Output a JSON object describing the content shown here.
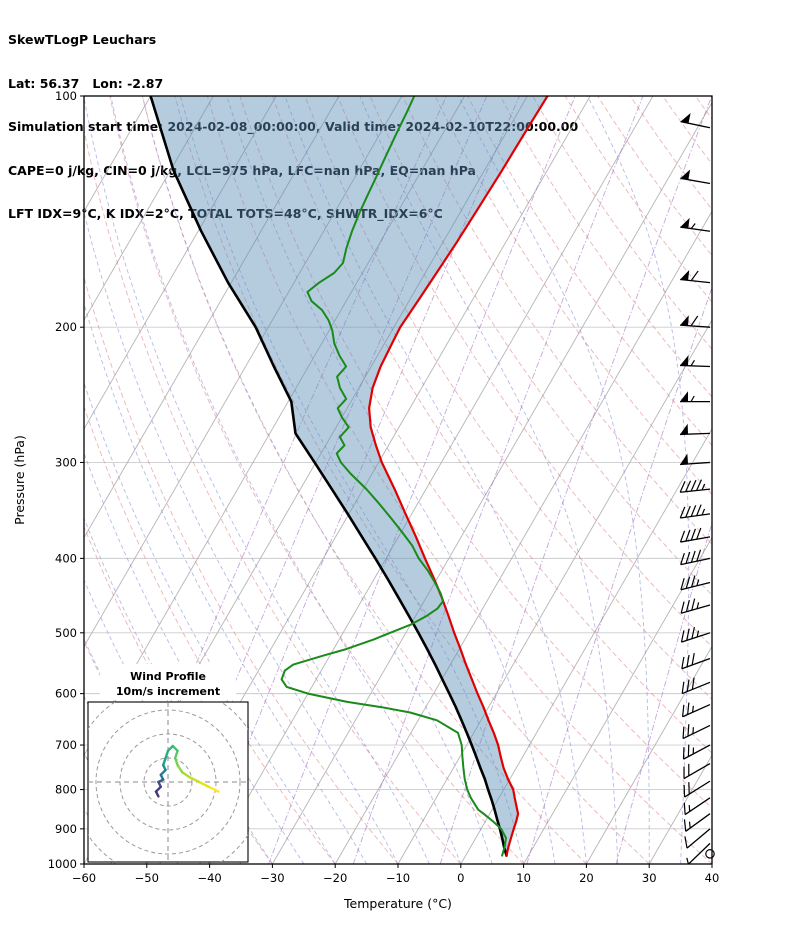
{
  "header": {
    "line1": "SkewTLogP Leuchars",
    "line2": "Lat: 56.37   Lon: -2.87",
    "line3": "Simulation start time: 2024-02-08_00:00:00, Valid time: 2024-02-10T22:00:00.00",
    "line4": "CAPE=0 j/kg, CIN=0 j/kg, LCL=975 hPa, LFC=nan hPa, EQ=nan hPa",
    "line5": "LFT IDX=9°C, K IDX=2°C, TOTAL TOTS=48°C, SHWTR_IDX=6°C"
  },
  "chart_data": {
    "type": "line",
    "title": "SkewTLogP Leuchars",
    "xlabel": "Temperature (°C)",
    "ylabel": "Pressure (hPa)",
    "x_ticks": [
      -60,
      -50,
      -40,
      -30,
      -20,
      -10,
      0,
      10,
      20,
      30,
      40
    ],
    "p_ticks": [
      100,
      200,
      300,
      400,
      500,
      600,
      700,
      800,
      900,
      1000
    ],
    "xlim": [
      -60,
      40
    ],
    "plim": [
      1000,
      100
    ],
    "skew_shift_per_decade_degC": 70.6,
    "shade_between": [
      "parcel",
      "temperature"
    ],
    "shade_color": "#5b8db8",
    "shade_opacity": 0.45,
    "series": [
      {
        "name": "parcel",
        "label": "Parcel trace",
        "color": "#000000",
        "width": 2.6,
        "points": [
          [
            975,
            6.5
          ],
          [
            950,
            5.3
          ],
          [
            925,
            4.2
          ],
          [
            900,
            3.0
          ],
          [
            875,
            1.7
          ],
          [
            850,
            0.4
          ],
          [
            825,
            -1.0
          ],
          [
            800,
            -2.5
          ],
          [
            775,
            -4.0
          ],
          [
            750,
            -5.7
          ],
          [
            725,
            -7.4
          ],
          [
            700,
            -9.2
          ],
          [
            675,
            -11.1
          ],
          [
            650,
            -13.1
          ],
          [
            625,
            -15.2
          ],
          [
            600,
            -17.5
          ],
          [
            575,
            -19.9
          ],
          [
            550,
            -22.4
          ],
          [
            525,
            -25.1
          ],
          [
            500,
            -28.0
          ],
          [
            475,
            -31.1
          ],
          [
            450,
            -34.4
          ],
          [
            425,
            -37.9
          ],
          [
            400,
            -41.7
          ],
          [
            375,
            -45.8
          ],
          [
            350,
            -50.2
          ],
          [
            325,
            -55.0
          ],
          [
            300,
            -60.2
          ],
          [
            275,
            -65.9
          ],
          [
            250,
            -69.5
          ],
          [
            225,
            -75.5
          ],
          [
            200,
            -82.0
          ],
          [
            175,
            -90.5
          ],
          [
            150,
            -99.5
          ],
          [
            125,
            -109.5
          ],
          [
            100,
            -120.0
          ]
        ]
      },
      {
        "name": "temperature",
        "label": "Temperature",
        "color": "#e00000",
        "width": 2.2,
        "points": [
          [
            975,
            6.5
          ],
          [
            950,
            6.0
          ],
          [
            925,
            5.6
          ],
          [
            900,
            5.2
          ],
          [
            880,
            4.9
          ],
          [
            860,
            4.5
          ],
          [
            850,
            4.0
          ],
          [
            820,
            2.5
          ],
          [
            800,
            1.5
          ],
          [
            775,
            -0.3
          ],
          [
            750,
            -2.0
          ],
          [
            725,
            -3.5
          ],
          [
            700,
            -5.0
          ],
          [
            675,
            -6.8
          ],
          [
            650,
            -8.8
          ],
          [
            625,
            -10.8
          ],
          [
            600,
            -13.0
          ],
          [
            575,
            -15.2
          ],
          [
            550,
            -17.5
          ],
          [
            525,
            -19.8
          ],
          [
            500,
            -22.3
          ],
          [
            475,
            -24.8
          ],
          [
            450,
            -27.5
          ],
          [
            425,
            -30.5
          ],
          [
            400,
            -33.8
          ],
          [
            375,
            -37.2
          ],
          [
            350,
            -41.0
          ],
          [
            325,
            -45.0
          ],
          [
            300,
            -49.5
          ],
          [
            285,
            -52.0
          ],
          [
            270,
            -54.5
          ],
          [
            255,
            -56.5
          ],
          [
            240,
            -57.8
          ],
          [
            225,
            -58.5
          ],
          [
            210,
            -58.8
          ],
          [
            200,
            -59.0
          ],
          [
            185,
            -58.6
          ],
          [
            170,
            -58.2
          ],
          [
            155,
            -57.8
          ],
          [
            140,
            -57.5
          ],
          [
            125,
            -57.2
          ],
          [
            110,
            -57.0
          ],
          [
            100,
            -56.8
          ]
        ]
      },
      {
        "name": "dewpoint",
        "label": "Dew point",
        "color": "#1a8a1a",
        "width": 2.0,
        "points": [
          [
            975,
            5.8
          ],
          [
            950,
            5.4
          ],
          [
            925,
            4.8
          ],
          [
            900,
            3.2
          ],
          [
            880,
            1.2
          ],
          [
            860,
            -1.0
          ],
          [
            850,
            -2.2
          ],
          [
            820,
            -4.5
          ],
          [
            800,
            -5.8
          ],
          [
            775,
            -7.2
          ],
          [
            750,
            -8.4
          ],
          [
            725,
            -9.6
          ],
          [
            700,
            -10.8
          ],
          [
            675,
            -12.5
          ],
          [
            650,
            -17.0
          ],
          [
            635,
            -22.0
          ],
          [
            625,
            -27.0
          ],
          [
            615,
            -33.0
          ],
          [
            600,
            -40.0
          ],
          [
            588,
            -44.0
          ],
          [
            575,
            -45.5
          ],
          [
            560,
            -45.8
          ],
          [
            550,
            -45.0
          ],
          [
            535,
            -41.0
          ],
          [
            525,
            -38.0
          ],
          [
            510,
            -34.5
          ],
          [
            500,
            -32.5
          ],
          [
            488,
            -30.0
          ],
          [
            475,
            -28.2
          ],
          [
            465,
            -27.2
          ],
          [
            455,
            -27.0
          ],
          [
            445,
            -28.0
          ],
          [
            430,
            -30.0
          ],
          [
            415,
            -32.2
          ],
          [
            400,
            -34.8
          ],
          [
            385,
            -37.0
          ],
          [
            370,
            -39.8
          ],
          [
            355,
            -42.8
          ],
          [
            340,
            -46.0
          ],
          [
            325,
            -49.5
          ],
          [
            310,
            -53.5
          ],
          [
            300,
            -56.0
          ],
          [
            292,
            -57.5
          ],
          [
            285,
            -57.0
          ],
          [
            278,
            -58.5
          ],
          [
            270,
            -58.0
          ],
          [
            262,
            -60.0
          ],
          [
            255,
            -61.5
          ],
          [
            248,
            -61.0
          ],
          [
            240,
            -63.0
          ],
          [
            232,
            -64.5
          ],
          [
            225,
            -64.0
          ],
          [
            218,
            -66.0
          ],
          [
            210,
            -68.0
          ],
          [
            202,
            -69.5
          ],
          [
            196,
            -71.0
          ],
          [
            190,
            -73.0
          ],
          [
            185,
            -75.5
          ],
          [
            180,
            -77.0
          ],
          [
            175,
            -76.0
          ],
          [
            170,
            -74.5
          ],
          [
            165,
            -74.0
          ],
          [
            158,
            -74.8
          ],
          [
            150,
            -75.5
          ],
          [
            142,
            -76.0
          ],
          [
            135,
            -76.3
          ],
          [
            128,
            -76.6
          ],
          [
            120,
            -77.0
          ],
          [
            112,
            -77.4
          ],
          [
            105,
            -77.7
          ],
          [
            100,
            -78.0
          ]
        ]
      }
    ],
    "background": {
      "gridline_color": "#cccccc",
      "isotherms": {
        "start": -120,
        "end": 40,
        "step": 10,
        "color": "#b5b5b5"
      },
      "dry_adiabats": {
        "start": -60,
        "end": 200,
        "step": 10,
        "color": "#d9777f"
      },
      "moist_adiabats": {
        "start": -60,
        "end": 40,
        "step": 5,
        "color": "#7b82d4"
      },
      "mixing_ratios": {
        "values": [
          0.02,
          0.05,
          0.1,
          0.3,
          1,
          3,
          8,
          20
        ],
        "color": "#a06bc0"
      }
    },
    "wind_barbs": {
      "color": "#000000",
      "units": "kt",
      "levels": [
        [
          110,
          50,
          282
        ],
        [
          130,
          50,
          280
        ],
        [
          150,
          55,
          278
        ],
        [
          175,
          60,
          276
        ],
        [
          200,
          60,
          274
        ],
        [
          225,
          55,
          272
        ],
        [
          250,
          55,
          270
        ],
        [
          275,
          50,
          268
        ],
        [
          300,
          50,
          266
        ],
        [
          325,
          45,
          264
        ],
        [
          350,
          45,
          262
        ],
        [
          375,
          40,
          260
        ],
        [
          400,
          40,
          258
        ],
        [
          430,
          35,
          256
        ],
        [
          460,
          35,
          254
        ],
        [
          500,
          35,
          252
        ],
        [
          540,
          30,
          250
        ],
        [
          580,
          30,
          248
        ],
        [
          620,
          25,
          246
        ],
        [
          660,
          25,
          244
        ],
        [
          700,
          25,
          242
        ],
        [
          740,
          20,
          240
        ],
        [
          780,
          20,
          238
        ],
        [
          820,
          15,
          236
        ],
        [
          860,
          15,
          234
        ],
        [
          900,
          10,
          230
        ],
        [
          940,
          5,
          226
        ],
        [
          970,
          0,
          0
        ]
      ]
    },
    "hodograph": {
      "title_line1": "Wind Profile",
      "title_line2": "10m/s increment",
      "ring_interval_ms": 10,
      "rings": [
        10,
        20,
        30,
        40
      ],
      "points_uv": [
        [
          21,
          -4
        ],
        [
          17,
          -2
        ],
        [
          13,
          0
        ],
        [
          9,
          2
        ],
        [
          6,
          4
        ],
        [
          4,
          7
        ],
        [
          3,
          10
        ],
        [
          4,
          13
        ],
        [
          2,
          15
        ],
        [
          0,
          13
        ],
        [
          -1,
          10
        ],
        [
          -2,
          7
        ],
        [
          -1,
          5
        ],
        [
          -3,
          3
        ],
        [
          -2,
          1
        ],
        [
          -4,
          0
        ],
        [
          -3,
          -2
        ],
        [
          -5,
          -4
        ],
        [
          -4,
          -6
        ]
      ],
      "segment_colors": [
        "#fde725",
        "#e5e419",
        "#c8e020",
        "#addc30",
        "#90d743",
        "#75d054",
        "#5ec962",
        "#48c16e",
        "#35b779",
        "#28ae80",
        "#1fa088",
        "#21918c",
        "#26828e",
        "#2c728e",
        "#34618d",
        "#3b528b",
        "#423f85",
        "#46327e"
      ]
    }
  }
}
